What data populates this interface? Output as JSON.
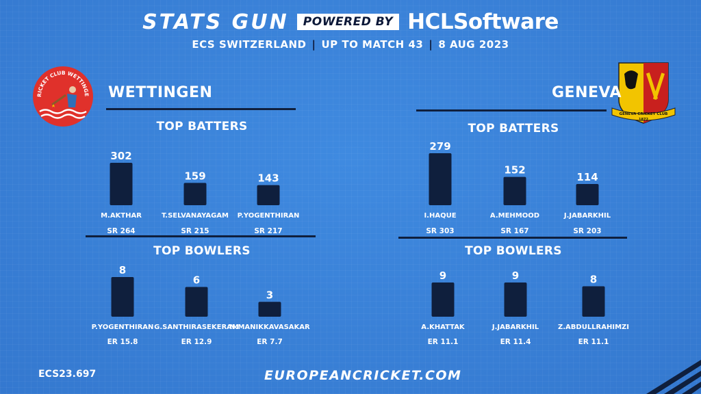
{
  "header": {
    "brand": "STATS GUN",
    "powered_by": "POWERED BY",
    "sponsor_hcl": "HCL",
    "sponsor_software": "Software",
    "competition": "ECS SWITZERLAND",
    "scope": "UP TO MATCH 43",
    "date": "8 AUG 2023"
  },
  "teams": {
    "left": {
      "name": "WETTINGEN",
      "logo_text": "CRICKET CLUB WETTINGEN",
      "batters_title": "TOP BATTERS",
      "bowlers_title": "TOP BOWLERS"
    },
    "right": {
      "name": "GENEVA",
      "logo_text": "GENEVA CRICKET CLUB",
      "logo_year": "1872",
      "batters_title": "TOP BATTERS",
      "bowlers_title": "TOP BOWLERS"
    }
  },
  "chart_data": [
    {
      "type": "bar",
      "team": "WETTINGEN",
      "title": "TOP BATTERS",
      "categories": [
        "M.AKTHAR",
        "T.SELVANAYAGAM",
        "P.YOGENTHIRAN"
      ],
      "values": [
        302,
        159,
        143
      ],
      "sublabels": [
        "SR 264",
        "SR 215",
        "SR 217"
      ],
      "ylim": [
        0,
        302
      ]
    },
    {
      "type": "bar",
      "team": "WETTINGEN",
      "title": "TOP BOWLERS",
      "categories": [
        "P.YOGENTHIRAN",
        "G.SANTHIRASEKERAM",
        "N.MANIKKAVASAKAR"
      ],
      "values": [
        8,
        6,
        3
      ],
      "sublabels": [
        "ER 15.8",
        "ER 12.9",
        "ER 7.7"
      ],
      "ylim": [
        0,
        8
      ]
    },
    {
      "type": "bar",
      "team": "GENEVA",
      "title": "TOP BATTERS",
      "categories": [
        "I.HAQUE",
        "A.MEHMOOD",
        "J.JABARKHIL"
      ],
      "values": [
        279,
        152,
        114
      ],
      "sublabels": [
        "SR 303",
        "SR 167",
        "SR 203"
      ],
      "ylim": [
        0,
        279
      ]
    },
    {
      "type": "bar",
      "team": "GENEVA",
      "title": "TOP BOWLERS",
      "categories": [
        "A.KHATTAK",
        "J.JABARKHIL",
        "Z.ABDULLRAHIMZI"
      ],
      "values": [
        9,
        9,
        8
      ],
      "sublabels": [
        "ER 11.1",
        "ER 11.4",
        "ER 11.1"
      ],
      "ylim": [
        0,
        9
      ]
    }
  ],
  "footer": {
    "code": "ECS23.697",
    "website": "EUROPEANCRICKET.COM"
  },
  "colors": {
    "background": "#3b82d6",
    "bar": "#0f1f3d",
    "text": "#ffffff",
    "wettingen_red": "#e0312b",
    "geneva_yellow": "#f2c400"
  }
}
